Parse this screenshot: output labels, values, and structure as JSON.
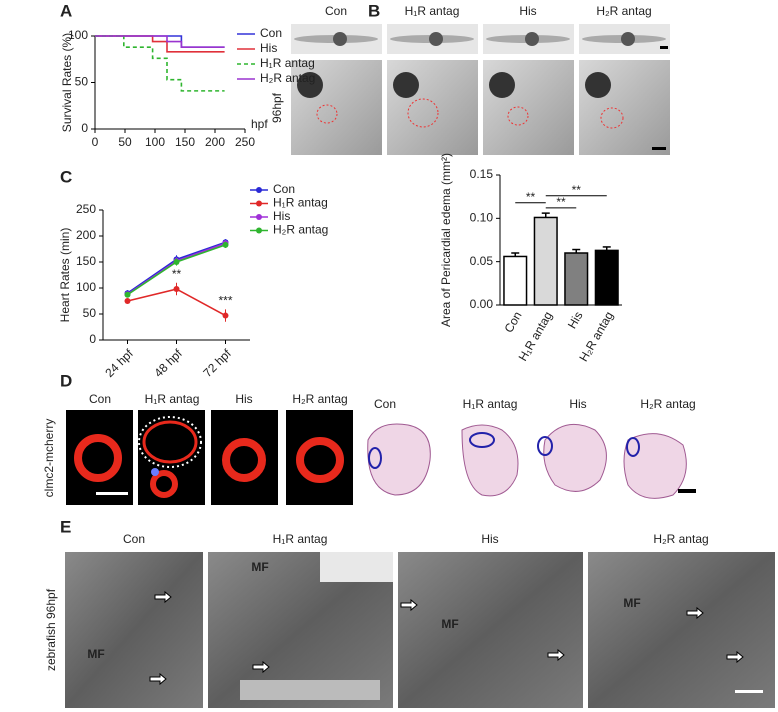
{
  "panels": {
    "labels": [
      "A",
      "B",
      "C",
      "D",
      "E"
    ],
    "b_images": {
      "columns": [
        "Con",
        "H₁R antag",
        "His",
        "H₂R antag"
      ],
      "row_label": "96hpf"
    },
    "d": {
      "fluorescence_columns": [
        "Con",
        "H₁R antag",
        "His",
        "H₂R antag"
      ],
      "row_label": "clmc2-mcherry",
      "histology_columns": [
        "Con",
        "H₁R antag",
        "His",
        "H₂R antag"
      ]
    },
    "e": {
      "columns": [
        "Con",
        "H₁R antag",
        "His",
        "H₂R antag"
      ],
      "row_label": "zebrafish 96hpf",
      "marker_labels": [
        "MF",
        "MF",
        "MF",
        "MF"
      ]
    }
  },
  "chart_data": [
    {
      "type": "line",
      "step": true,
      "ylabel": "Survival Rates (%)",
      "xlabel": "hpf",
      "xlim": [
        0,
        250
      ],
      "xticks": [
        0,
        50,
        100,
        150,
        200,
        250
      ],
      "ylim": [
        0,
        100
      ],
      "yticks": [
        0,
        50,
        100
      ],
      "series": [
        {
          "name": "Con",
          "color": "#3434d8",
          "line_style": "solid",
          "x": [
            0,
            144,
            216
          ],
          "values": [
            100,
            88,
            88
          ]
        },
        {
          "name": "His",
          "color": "#e0303a",
          "line_style": "solid",
          "x": [
            0,
            96,
            120,
            216
          ],
          "values": [
            100,
            94,
            83,
            83
          ]
        },
        {
          "name": "H₁R antag",
          "color": "#2fb52f",
          "line_style": "dashed",
          "x": [
            0,
            48,
            96,
            120,
            144,
            216
          ],
          "values": [
            100,
            88,
            76,
            53,
            41,
            41
          ]
        },
        {
          "name": "H₂R antag",
          "color": "#9a34cf",
          "line_style": "solid",
          "x": [
            0,
            120,
            144,
            216
          ],
          "values": [
            100,
            94,
            88,
            88
          ]
        }
      ]
    },
    {
      "type": "bar",
      "ylabel": "Area of Pericardial edema (mm²)",
      "categories": [
        "Con",
        "H₁R antag",
        "His",
        "H₂R antag"
      ],
      "values": [
        0.056,
        0.101,
        0.06,
        0.063
      ],
      "errors": [
        0.004,
        0.005,
        0.004,
        0.004
      ],
      "colors": [
        "#ffffff",
        "#d9d9d9",
        "#808080",
        "#000000"
      ],
      "ylim": [
        0,
        0.15
      ],
      "yticks": [
        {
          "value": 0,
          "label": "0.00"
        },
        {
          "value": 0.05,
          "label": "0.05"
        },
        {
          "value": 0.1,
          "label": "0.10"
        },
        {
          "value": 0.15,
          "label": "0.15"
        }
      ],
      "annotations": [
        "**",
        "**",
        "**"
      ]
    },
    {
      "type": "line",
      "step": false,
      "ylabel": "Heart Rates (min)",
      "categories": [
        "24 hpf",
        "48 hpf",
        "72 hpf"
      ],
      "ylim": [
        0,
        250
      ],
      "yticks": [
        0,
        50,
        100,
        150,
        200,
        250
      ],
      "series": [
        {
          "name": "Con",
          "color": "#2a2ad6",
          "values": [
            90,
            155,
            188
          ],
          "errors": [
            6,
            8,
            6
          ]
        },
        {
          "name": "H₁R antag",
          "color": "#e02828",
          "values": [
            75,
            98,
            47
          ],
          "errors": [
            5,
            12,
            12
          ]
        },
        {
          "name": "His",
          "color": "#a030d8",
          "values": [
            88,
            152,
            186
          ],
          "errors": [
            5,
            7,
            6
          ]
        },
        {
          "name": "H₂R antag",
          "color": "#2fb52f",
          "values": [
            87,
            150,
            183
          ],
          "errors": [
            5,
            7,
            6
          ]
        }
      ],
      "annotations": [
        "**",
        "***"
      ]
    }
  ]
}
